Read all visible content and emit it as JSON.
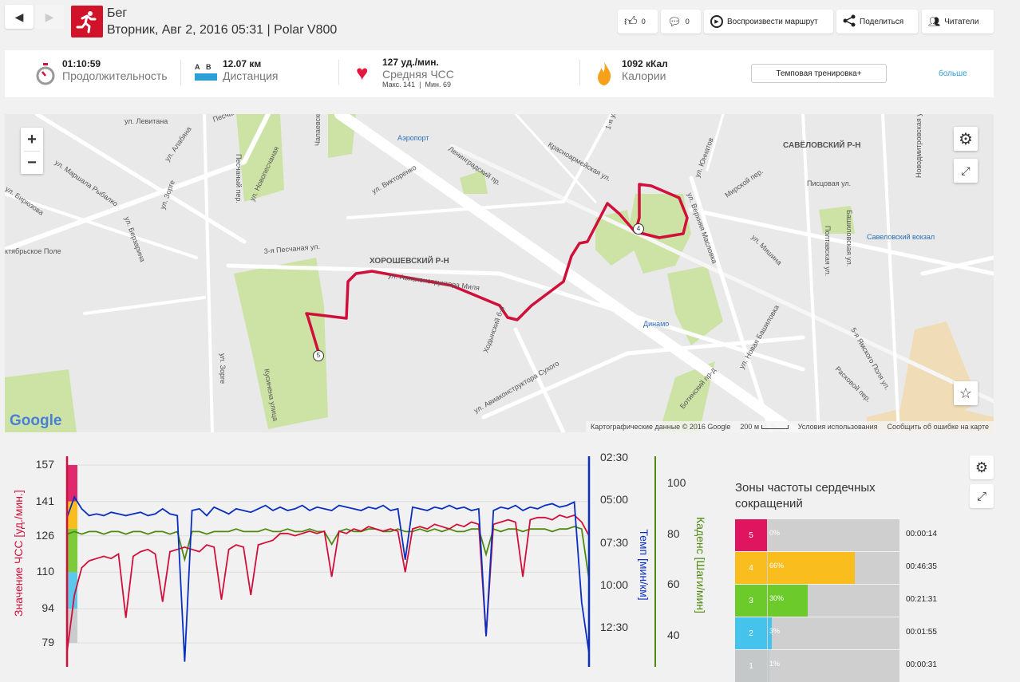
{
  "header": {
    "sport": "Бег",
    "subtitle": "Вторник, Авг 2, 2016 05:31 | Polar V800"
  },
  "toolbar": {
    "likes": "0",
    "comments": "0",
    "replay": "Воспроизвести маршрут",
    "share": "Поделиться",
    "followers": "Читатели"
  },
  "summary": {
    "duration": {
      "value": "01:10:59",
      "label": "Продолжительность"
    },
    "distance": {
      "a": "A",
      "b": "B",
      "value": "12.07 км",
      "label": "Дистанция"
    },
    "heart": {
      "value": "127 уд./мин.",
      "label": "Средняя ЧСС",
      "sub": "Макс. 141  |  Мин. 69"
    },
    "calories": {
      "value": "1092 кКал",
      "label": "Калории"
    },
    "type_button": "Темповая тренировка+",
    "more": "больше"
  },
  "map": {
    "zoom_in": "+",
    "zoom_out": "−",
    "labels": [
      "ул. Левитана",
      "ул. Алабяна",
      "Песчаная ул.",
      "ул. Новопесчаная",
      "Чапаевский пер.",
      "Аэропорт",
      "Ленинградский пр.",
      "Красноармейская ул.",
      "1-я ул. 8 Марта",
      "ул. Юннатов",
      "САВЁЛОВСКИЙ Р-Н",
      "Новодмитровская ул.",
      "ул. Викторенко",
      "Песчаный пер.",
      "ул. Зорге",
      "ул. Маршала Рыбалко",
      "ул. Бирюзова",
      "ктябрьское Поле",
      "ул. Берзарина",
      "3-я Песчаная ул.",
      "ХОРОШЕВСКИЙ Р-Н",
      "ул. Авиаконструктора Миля",
      "ул. Верхняя Масловка",
      "Мирской пер.",
      "Писцовая ул.",
      "Башиловская ул.",
      "Савеловский вокзал",
      "Полтавская ул.",
      "Динамо",
      "Ходынский б-р",
      "ул. Авиаконструктора Сухого",
      "Кусинена улица",
      "ул. Новая Башиловка",
      "5-я Ямского Поля ул.",
      "Расковой пер.",
      "ул. Зорге",
      "Ботинский пр-д",
      "ул. Мишина"
    ],
    "google": "Google",
    "footer": {
      "data": "Картографические данные © 2016 Google",
      "scale": "200 м",
      "terms": "Условия использования",
      "report": "Сообщить об ошибке на карте"
    },
    "markers": [
      "4",
      "5"
    ]
  },
  "chart_data": {
    "type": "line",
    "x_unit": "minutes",
    "x": [
      0,
      1,
      2,
      3,
      4,
      5,
      6,
      7,
      8,
      9,
      10,
      11,
      12,
      13,
      14,
      15,
      16,
      17,
      18,
      19,
      20,
      21,
      22,
      23,
      24,
      25,
      26,
      27,
      28,
      29,
      30,
      31,
      32,
      33,
      34,
      35,
      36,
      37,
      38,
      39,
      40,
      41,
      42,
      43,
      44,
      45,
      46,
      47,
      48,
      49,
      50,
      51,
      52,
      53,
      54,
      55,
      56,
      57,
      58,
      59,
      60,
      61,
      62,
      63,
      64,
      65,
      66,
      67,
      68,
      69,
      70,
      71
    ],
    "series": [
      {
        "name": "Значение ЧСС [уд./мин.]",
        "color": "#d0103a",
        "axis": "hr",
        "values": [
          75,
          100,
          112,
          115,
          116,
          117,
          116,
          118,
          90,
          117,
          119,
          120,
          118,
          97,
          119,
          120,
          121,
          120,
          119,
          122,
          121,
          98,
          120,
          122,
          121,
          100,
          122,
          123,
          124,
          127,
          127,
          126,
          127,
          128,
          127,
          128,
          108,
          128,
          127,
          129,
          128,
          130,
          129,
          128,
          129,
          128,
          110,
          129,
          130,
          129,
          131,
          130,
          129,
          131,
          130,
          132,
          131,
          82,
          131,
          132,
          133,
          132,
          108,
          133,
          134,
          134,
          133,
          135,
          134,
          135,
          132,
          126
        ]
      },
      {
        "name": "Темп [мин/км]",
        "color": "#0a2fc0",
        "axis": "pace",
        "values": [
          6.0,
          4.8,
          5.5,
          5.9,
          5.8,
          5.9,
          5.7,
          5.8,
          5.9,
          5.8,
          5.7,
          5.9,
          5.8,
          5.5,
          5.8,
          5.9,
          14.5,
          5.6,
          5.5,
          5.9,
          5.4,
          5.6,
          5.8,
          5.5,
          5.6,
          5.7,
          5.5,
          5.3,
          5.6,
          5.4,
          5.6,
          5.5,
          5.3,
          5.6,
          5.4,
          5.5,
          5.6,
          5.3,
          5.4,
          5.5,
          5.6,
          5.4,
          5.5,
          5.3,
          5.6,
          5.5,
          8.5,
          5.4,
          5.5,
          5.6,
          5.4,
          5.5,
          5.3,
          5.5,
          5.4,
          5.6,
          5.5,
          13.0,
          5.6,
          5.4,
          5.5,
          5.3,
          5.6,
          5.4,
          5.5,
          5.3,
          5.2,
          5.4,
          5.3,
          5.1,
          11.0,
          14.0
        ]
      },
      {
        "name": "Каденс [Шаги/мин]",
        "color": "#4f8a10",
        "axis": "cadence",
        "values": [
          80,
          81,
          80,
          81,
          81,
          80,
          81,
          81,
          80,
          81,
          81,
          80,
          81,
          81,
          80,
          81,
          70,
          81,
          81,
          80,
          81,
          81,
          81,
          82,
          81,
          81,
          81,
          82,
          81,
          81,
          82,
          81,
          81,
          82,
          81,
          81,
          76,
          81,
          82,
          81,
          81,
          82,
          82,
          81,
          81,
          82,
          81,
          81,
          82,
          81,
          82,
          81,
          82,
          81,
          81,
          82,
          82,
          72,
          82,
          81,
          82,
          82,
          81,
          82,
          82,
          82,
          81,
          82,
          82,
          83,
          82,
          62
        ]
      }
    ],
    "hr_axis": {
      "label": "Значение ЧСС [уд./мин.]",
      "ticks": [
        "157",
        "141",
        "126",
        "110",
        "94",
        "79"
      ],
      "range": [
        79,
        157
      ]
    },
    "pace_axis": {
      "label": "Темп [мин/км]",
      "ticks": [
        "02:30",
        "05:00",
        "07:30",
        "10:00",
        "12:30"
      ],
      "range": [
        2.5,
        12.5
      ]
    },
    "cadence_axis": {
      "label": "Каденс [Шаги/мин]",
      "ticks": [
        "100",
        "80",
        "60",
        "40"
      ],
      "range": [
        40,
        100
      ]
    }
  },
  "zones": {
    "title": "Зоны частоты сердечных сокращений",
    "items": [
      {
        "zone": "5",
        "percent": "0%",
        "fraction": 0,
        "time": "00:00:14",
        "color": "#e0155f"
      },
      {
        "zone": "4",
        "percent": "66%",
        "fraction": 0.66,
        "time": "00:46:35",
        "color": "#f9bd1e"
      },
      {
        "zone": "3",
        "percent": "30%",
        "fraction": 0.3,
        "time": "00:21:31",
        "color": "#6ccb2b"
      },
      {
        "zone": "2",
        "percent": "3%",
        "fraction": 0.03,
        "time": "00:01:55",
        "color": "#45c3ec"
      },
      {
        "zone": "1",
        "percent": "1%",
        "fraction": 0.01,
        "time": "00:00:31",
        "color": "#c4c8c8"
      }
    ]
  }
}
